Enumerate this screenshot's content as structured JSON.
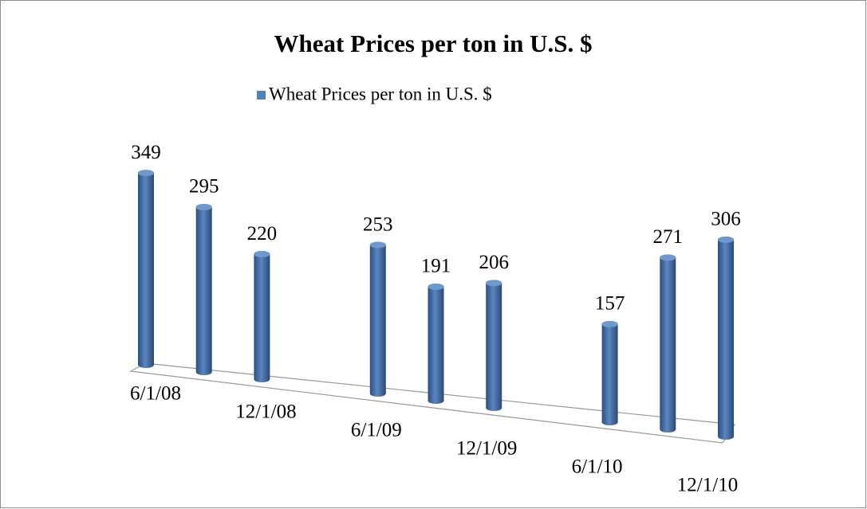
{
  "chart_data": {
    "type": "bar",
    "title": "Wheat Prices per ton in U.S. $",
    "categories": [
      "6/1/08",
      null,
      "12/1/08",
      null,
      "6/1/09",
      null,
      "12/1/09",
      null,
      "6/1/10",
      null,
      "12/1/10"
    ],
    "series": [
      {
        "name": "Wheat Prices per ton in U.S. $",
        "color": "#4f81bd",
        "values": [
          349,
          295,
          220,
          null,
          253,
          191,
          206,
          null,
          157,
          271,
          306
        ]
      }
    ],
    "legend": "top"
  }
}
